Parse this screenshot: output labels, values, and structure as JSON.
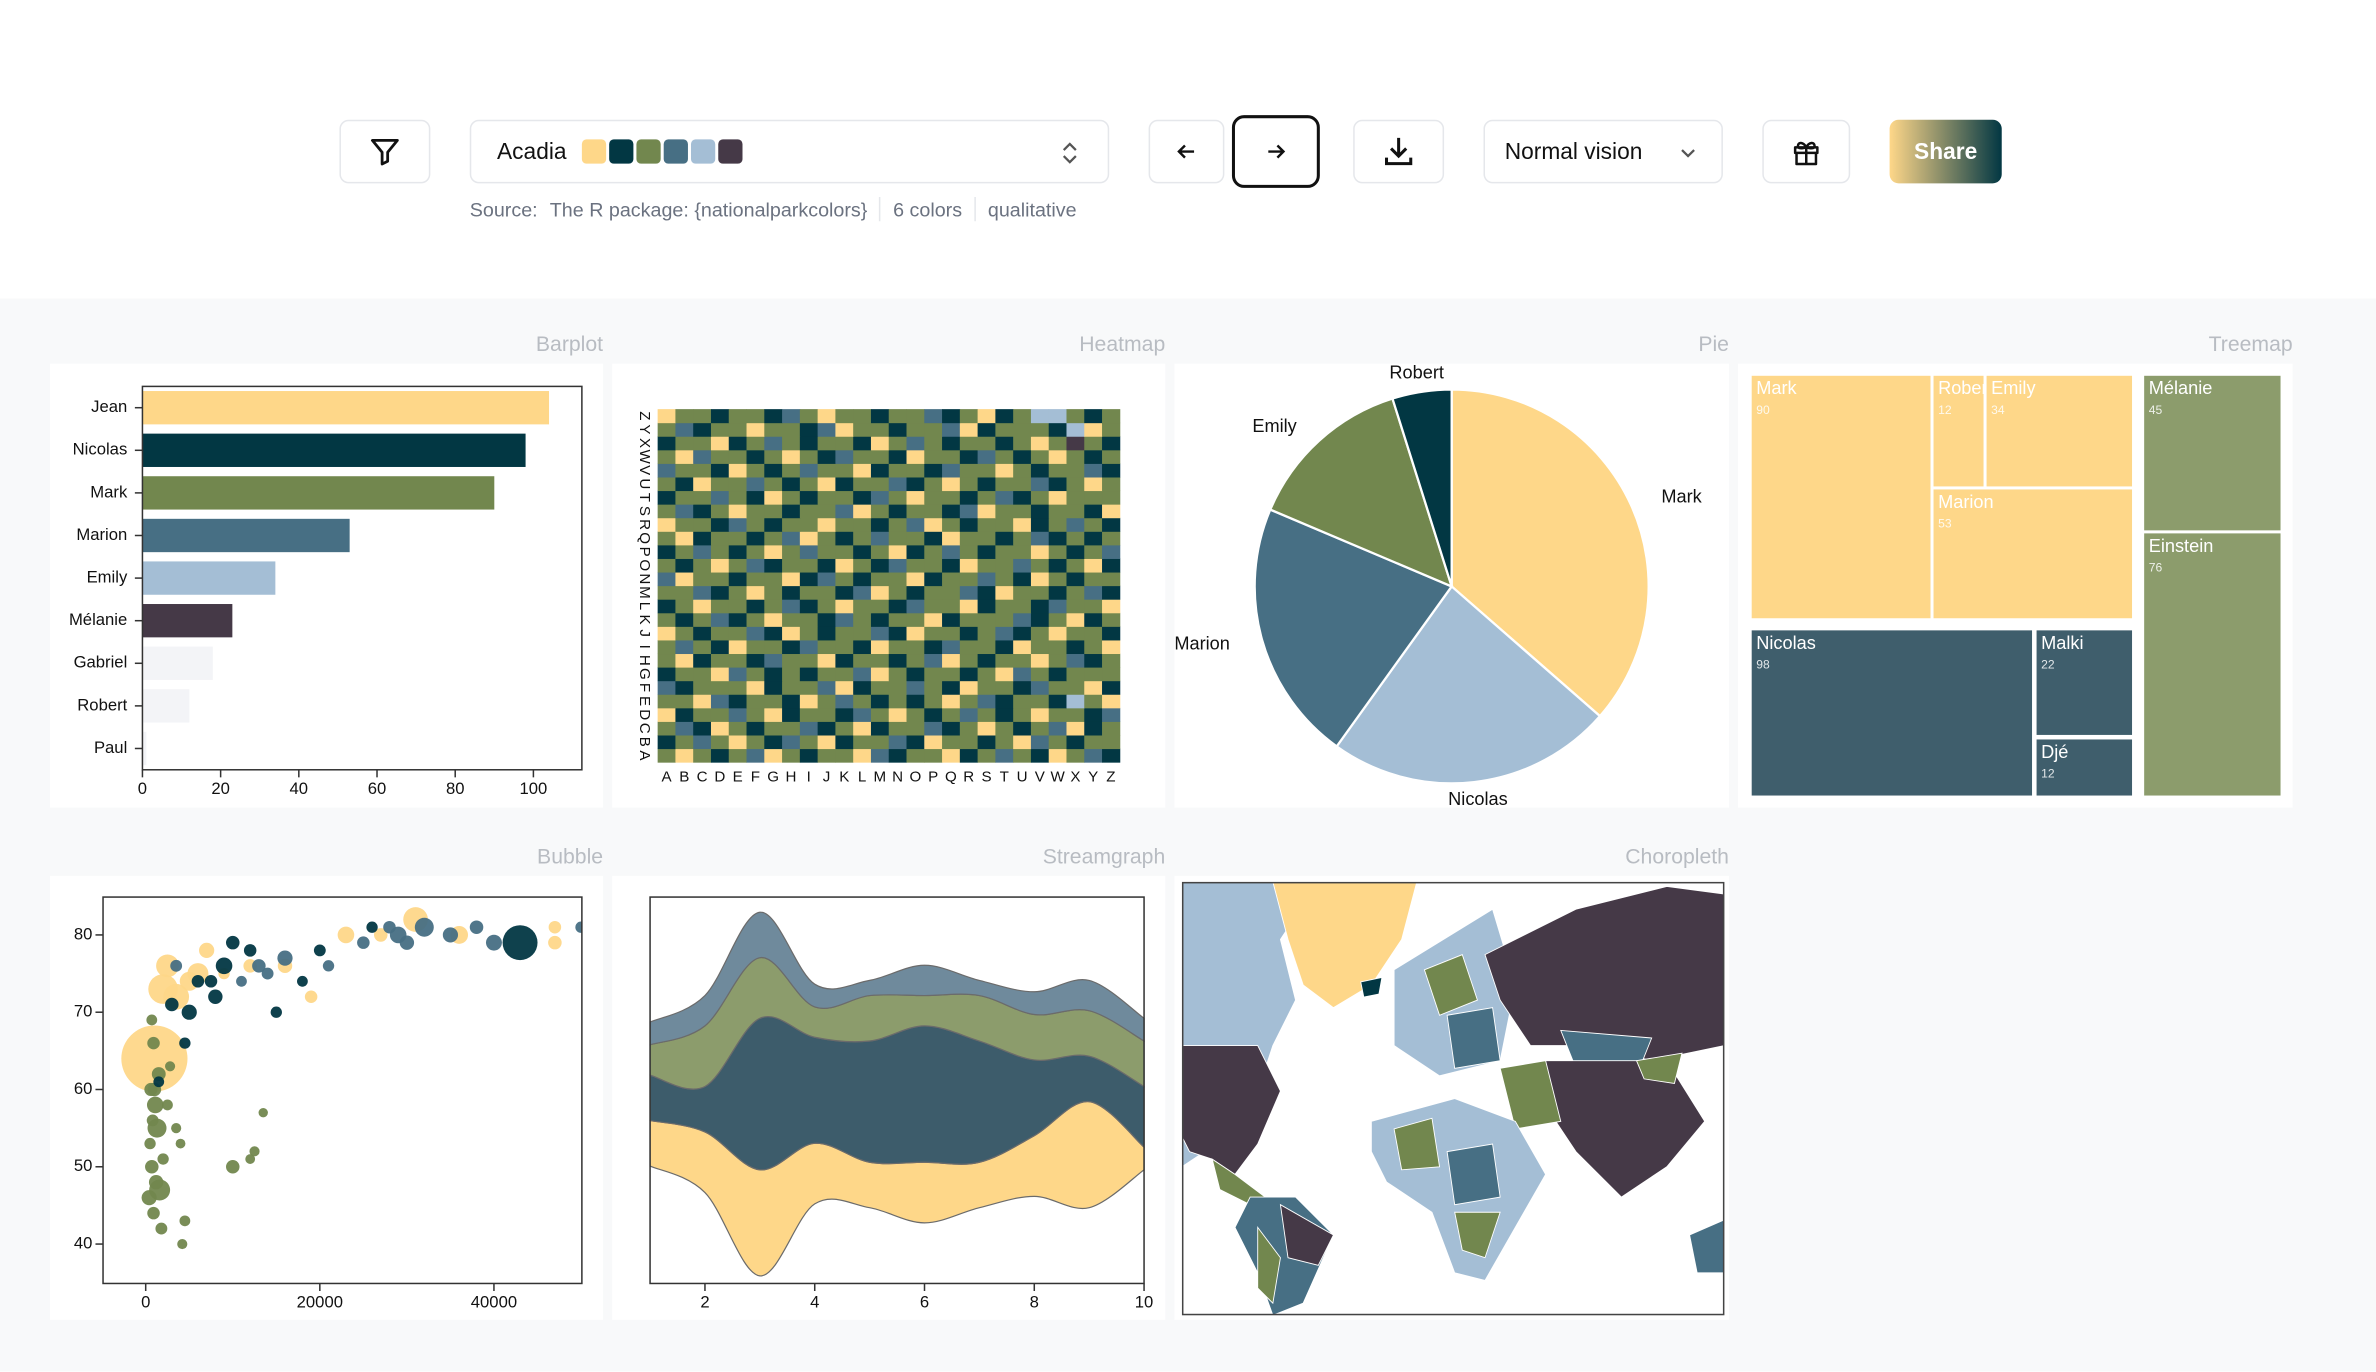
{
  "toolbar": {
    "palette": {
      "name": "Acadia",
      "colors": [
        "#fed789",
        "#023743",
        "#72874e",
        "#476f84",
        "#a4bed5",
        "#453947"
      ]
    },
    "vision": "Normal vision",
    "share": "Share",
    "source": {
      "label": "Source:",
      "text": "The R package: {nationalparkcolors}",
      "count": "6 colors",
      "kind": "qualitative"
    }
  },
  "chart_data": [
    {
      "type": "bar",
      "title": "Barplot",
      "orientation": "horizontal",
      "categories": [
        "Jean",
        "Nicolas",
        "Mark",
        "Marion",
        "Emily",
        "Mélanie",
        "Gabriel",
        "Robert",
        "Paul"
      ],
      "values": [
        104,
        98,
        90,
        53,
        34,
        23,
        18,
        12,
        1
      ],
      "colors": [
        "#fed789",
        "#023743",
        "#72874e",
        "#476f84",
        "#a4bed5",
        "#453947",
        "#f3f4f7",
        "#f3f4f7",
        "#f3f4f7"
      ],
      "xlim": [
        0,
        112.4
      ],
      "xticks": [
        0,
        20,
        40,
        60,
        80,
        100
      ]
    },
    {
      "type": "heatmap",
      "title": "Heatmap",
      "xcategories": [
        "A",
        "B",
        "C",
        "D",
        "E",
        "F",
        "G",
        "H",
        "I",
        "J",
        "K",
        "L",
        "M",
        "N",
        "O",
        "P",
        "Q",
        "R",
        "S",
        "T",
        "U",
        "V",
        "W",
        "X",
        "Y",
        "Z"
      ],
      "ycategories": [
        "A",
        "B",
        "C",
        "D",
        "E",
        "F",
        "G",
        "H",
        "I",
        "J",
        "K",
        "L",
        "M",
        "N",
        "O",
        "P",
        "Q",
        "R",
        "S",
        "T",
        "U",
        "V",
        "W",
        "X",
        "Y",
        "Z"
      ],
      "colorscale": [
        "#fed789",
        "#023743",
        "#72874e",
        "#476f84",
        "#a4bed5",
        "#453947"
      ],
      "values": [
        [
          2,
          0,
          2,
          1,
          2,
          3,
          0,
          2,
          1,
          2,
          2,
          0,
          3,
          1,
          2,
          2,
          0,
          1,
          2,
          3,
          2,
          1,
          0,
          2,
          3,
          1
        ],
        [
          1,
          2,
          3,
          2,
          0,
          2,
          1,
          3,
          2,
          0,
          1,
          2,
          2,
          3,
          1,
          0,
          2,
          2,
          1,
          2,
          0,
          3,
          2,
          1,
          2,
          2
        ],
        [
          2,
          3,
          1,
          0,
          2,
          1,
          2,
          2,
          3,
          1,
          2,
          0,
          1,
          2,
          2,
          3,
          1,
          2,
          0,
          2,
          1,
          2,
          3,
          0,
          1,
          2
        ],
        [
          0,
          1,
          2,
          2,
          3,
          2,
          0,
          1,
          2,
          2,
          1,
          3,
          2,
          0,
          2,
          1,
          2,
          3,
          2,
          1,
          2,
          0,
          2,
          2,
          1,
          3
        ],
        [
          2,
          2,
          0,
          3,
          1,
          2,
          2,
          1,
          0,
          2,
          3,
          2,
          1,
          2,
          1,
          2,
          0,
          2,
          3,
          1,
          2,
          2,
          1,
          4,
          2,
          0
        ],
        [
          3,
          1,
          2,
          2,
          2,
          0,
          1,
          2,
          2,
          3,
          0,
          1,
          2,
          2,
          3,
          2,
          1,
          0,
          2,
          2,
          1,
          3,
          2,
          2,
          0,
          1
        ],
        [
          1,
          2,
          2,
          0,
          3,
          2,
          1,
          2,
          1,
          2,
          2,
          3,
          0,
          2,
          1,
          2,
          2,
          1,
          2,
          0,
          3,
          2,
          1,
          2,
          2,
          2
        ],
        [
          2,
          0,
          1,
          2,
          2,
          1,
          3,
          2,
          2,
          0,
          1,
          2,
          2,
          1,
          2,
          3,
          0,
          2,
          1,
          2,
          2,
          0,
          2,
          3,
          1,
          2
        ],
        [
          2,
          3,
          2,
          1,
          0,
          2,
          2,
          1,
          3,
          2,
          2,
          1,
          0,
          2,
          2,
          1,
          3,
          2,
          2,
          1,
          0,
          2,
          2,
          1,
          2,
          0
        ],
        [
          0,
          2,
          1,
          2,
          2,
          3,
          1,
          0,
          2,
          1,
          2,
          2,
          3,
          1,
          0,
          2,
          2,
          1,
          2,
          3,
          1,
          2,
          0,
          2,
          2,
          1
        ],
        [
          2,
          1,
          2,
          3,
          1,
          2,
          0,
          2,
          2,
          1,
          3,
          2,
          1,
          2,
          2,
          0,
          1,
          2,
          2,
          2,
          3,
          1,
          2,
          0,
          1,
          2
        ],
        [
          1,
          2,
          0,
          2,
          2,
          1,
          2,
          3,
          1,
          2,
          0,
          2,
          2,
          1,
          3,
          2,
          2,
          0,
          1,
          2,
          2,
          1,
          3,
          2,
          2,
          0
        ],
        [
          2,
          2,
          3,
          1,
          2,
          0,
          2,
          1,
          2,
          2,
          1,
          3,
          0,
          2,
          1,
          2,
          2,
          3,
          1,
          0,
          2,
          2,
          1,
          2,
          3,
          1
        ],
        [
          3,
          0,
          2,
          2,
          1,
          2,
          2,
          0,
          1,
          3,
          2,
          1,
          2,
          2,
          0,
          1,
          2,
          2,
          3,
          2,
          1,
          0,
          2,
          1,
          2,
          2
        ],
        [
          2,
          1,
          2,
          0,
          2,
          3,
          1,
          2,
          2,
          1,
          0,
          2,
          1,
          3,
          2,
          2,
          1,
          0,
          2,
          2,
          3,
          2,
          1,
          2,
          0,
          1
        ],
        [
          1,
          2,
          3,
          2,
          1,
          2,
          0,
          2,
          3,
          2,
          2,
          1,
          2,
          0,
          1,
          2,
          3,
          2,
          1,
          2,
          2,
          0,
          2,
          1,
          2,
          3
        ],
        [
          2,
          0,
          1,
          2,
          2,
          1,
          2,
          3,
          0,
          2,
          1,
          2,
          3,
          2,
          2,
          1,
          0,
          2,
          2,
          1,
          2,
          3,
          1,
          2,
          1,
          2
        ],
        [
          0,
          2,
          2,
          1,
          3,
          2,
          1,
          2,
          2,
          0,
          2,
          2,
          1,
          2,
          3,
          0,
          2,
          1,
          2,
          2,
          0,
          1,
          2,
          3,
          2,
          1
        ],
        [
          2,
          3,
          1,
          2,
          0,
          2,
          2,
          1,
          2,
          2,
          3,
          0,
          2,
          1,
          2,
          2,
          1,
          3,
          0,
          2,
          2,
          1,
          2,
          2,
          1,
          0
        ],
        [
          1,
          2,
          2,
          3,
          2,
          1,
          0,
          2,
          1,
          2,
          2,
          1,
          3,
          2,
          0,
          2,
          2,
          1,
          2,
          3,
          1,
          2,
          0,
          2,
          2,
          2
        ],
        [
          2,
          1,
          0,
          2,
          2,
          3,
          2,
          1,
          2,
          0,
          1,
          2,
          2,
          3,
          1,
          2,
          0,
          2,
          1,
          2,
          2,
          3,
          1,
          2,
          0,
          2
        ],
        [
          3,
          2,
          2,
          1,
          0,
          2,
          1,
          2,
          3,
          2,
          2,
          0,
          1,
          2,
          2,
          1,
          3,
          2,
          2,
          0,
          2,
          1,
          2,
          2,
          3,
          1
        ],
        [
          2,
          0,
          3,
          2,
          2,
          1,
          2,
          0,
          2,
          1,
          3,
          2,
          2,
          1,
          0,
          2,
          2,
          1,
          3,
          2,
          1,
          2,
          0,
          2,
          1,
          2
        ],
        [
          1,
          2,
          2,
          0,
          1,
          2,
          3,
          2,
          1,
          2,
          2,
          1,
          0,
          2,
          3,
          2,
          1,
          2,
          2,
          1,
          2,
          0,
          2,
          5,
          2,
          1
        ],
        [
          2,
          3,
          1,
          2,
          2,
          0,
          2,
          2,
          1,
          3,
          0,
          2,
          2,
          1,
          2,
          2,
          3,
          0,
          1,
          2,
          2,
          2,
          1,
          4,
          0,
          2
        ],
        [
          0,
          2,
          2,
          1,
          2,
          2,
          1,
          3,
          2,
          0,
          2,
          2,
          1,
          2,
          2,
          3,
          1,
          2,
          0,
          1,
          2,
          4,
          4,
          2,
          1,
          2
        ]
      ]
    },
    {
      "type": "pie",
      "title": "Pie",
      "categories": [
        "Mark",
        "Nicolas",
        "Marion",
        "Emily",
        "Robert"
      ],
      "values": [
        90,
        58,
        53,
        34,
        12
      ],
      "colors": [
        "#fed789",
        "#a4bed5",
        "#476f84",
        "#72874e",
        "#023743"
      ]
    },
    {
      "type": "treemap",
      "title": "Treemap",
      "categories": [
        "Mark",
        "Robert",
        "Emily",
        "Marion",
        "Nicolas",
        "Malki",
        "Djé",
        "Mélanie",
        "Einstein"
      ],
      "values": [
        90,
        12,
        34,
        53,
        98,
        22,
        12,
        45,
        76
      ],
      "colors": [
        "#fed789",
        "#fed789",
        "#fed789",
        "#fed789",
        "#3f5e6c",
        "#3f5e6c",
        "#3f5e6c",
        "#8c9c6c",
        "#8c9c6c"
      ]
    },
    {
      "type": "bubble",
      "title": "Bubble",
      "xlim": [
        -4900,
        50100
      ],
      "ylim": [
        34.9,
        84.9
      ],
      "xticks": [
        0,
        20000,
        40000
      ],
      "yticks": [
        40,
        50,
        60,
        70,
        80
      ],
      "series": [
        {
          "color": "#fed789",
          "x": [
            1000,
            2000,
            3500,
            5000,
            6000,
            2500,
            7000,
            12000,
            19000,
            27000,
            31000,
            36000,
            47000,
            47000,
            16000,
            23000,
            9000
          ],
          "y": [
            64,
            73,
            72,
            74,
            75,
            76,
            78,
            76,
            72,
            80,
            82,
            80,
            79,
            81,
            76,
            80,
            75
          ],
          "size": [
            1300,
            200,
            140,
            60,
            80,
            100,
            30,
            20,
            15,
            20,
            125,
            50,
            20,
            15,
            25,
            40,
            10
          ]
        },
        {
          "color": "#72874e",
          "x": [
            400,
            700,
            900,
            1200,
            500,
            800,
            1100,
            600,
            1500,
            900,
            1300,
            2000,
            2500,
            3500,
            4000,
            4500,
            4200,
            1800,
            10000,
            12500,
            12000,
            13500,
            700,
            2800,
            1600,
            1000
          ],
          "y": [
            46,
            50,
            44,
            48,
            53,
            56,
            58,
            60,
            62,
            66,
            55,
            51,
            58,
            55,
            53,
            43,
            40,
            42,
            50,
            52,
            51,
            57,
            69,
            63,
            47,
            60
          ],
          "size": [
            30,
            20,
            15,
            25,
            10,
            12,
            40,
            18,
            22,
            15,
            60,
            10,
            8,
            6,
            5,
            8,
            6,
            12,
            20,
            6,
            5,
            4,
            8,
            6,
            80,
            20
          ]
        },
        {
          "color": "#476f84",
          "x": [
            32000,
            35000,
            38000,
            40000,
            25000,
            29000,
            30000,
            28000,
            50000,
            21000,
            13000,
            16000,
            3500,
            11000,
            14000
          ],
          "y": [
            81,
            80,
            81,
            79,
            79,
            80,
            79,
            81,
            81,
            76,
            76,
            77,
            76,
            74,
            75
          ],
          "size": [
            60,
            30,
            20,
            35,
            15,
            40,
            25,
            15,
            10,
            10,
            20,
            30,
            12,
            8,
            12
          ]
        },
        {
          "color": "#023743",
          "x": [
            43000,
            3000,
            5000,
            8000,
            9000,
            6000,
            10000,
            12000,
            15000,
            18000,
            20000,
            26000,
            1500,
            4500,
            7500
          ],
          "y": [
            79,
            71,
            70,
            72,
            76,
            74,
            79,
            78,
            70,
            74,
            78,
            81,
            61,
            66,
            74
          ],
          "size": [
            300,
            20,
            30,
            25,
            40,
            15,
            20,
            15,
            10,
            8,
            12,
            10,
            8,
            10,
            15
          ]
        }
      ]
    },
    {
      "type": "streamgraph",
      "title": "Streamgraph",
      "x": [
        1,
        2,
        3,
        4,
        5,
        6,
        7,
        8,
        9,
        10
      ],
      "xlim": [
        1,
        10
      ],
      "xticks": [
        2,
        4,
        6,
        8,
        10
      ],
      "ylim": [
        -12.5,
        13
      ],
      "series": [
        {
          "color": "#fed789",
          "values": [
            3,
            4,
            7,
            4,
            3,
            4,
            3,
            4,
            7,
            1.5
          ]
        },
        {
          "color": "#3d5c6b",
          "values": [
            3,
            3,
            10,
            7,
            8,
            9,
            8,
            5,
            3,
            4
          ]
        },
        {
          "color": "#8c9c6c",
          "values": [
            2,
            4,
            4,
            2,
            3,
            2,
            3,
            3,
            3,
            3
          ]
        },
        {
          "color": "#6f8a9c",
          "values": [
            1.5,
            2,
            3,
            1.5,
            1,
            2,
            1,
            1.5,
            2,
            1.5
          ]
        }
      ]
    },
    {
      "type": "map",
      "title": "Choropleth"
    }
  ]
}
